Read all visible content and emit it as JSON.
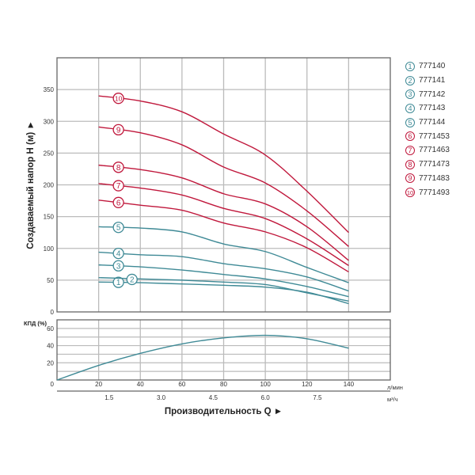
{
  "chart_data": [
    {
      "type": "line",
      "ylabel": "Создаваемый напор H (м) ►",
      "xlim": [
        0,
        160
      ],
      "ylim": [
        0,
        400
      ],
      "yticks": [
        0,
        50,
        100,
        150,
        200,
        250,
        300,
        350
      ],
      "xgrid": [
        20,
        40,
        60,
        80,
        100,
        120,
        140
      ],
      "grid": true,
      "legend_placement": "right",
      "x": [
        20,
        40,
        60,
        80,
        100,
        120,
        140
      ],
      "series": [
        {
          "name": "777140",
          "label": "1",
          "color": "#3f8a96",
          "values": [
            47,
            46,
            44,
            42,
            39,
            31,
            13
          ]
        },
        {
          "name": "777141",
          "label": "2",
          "color": "#3f8a96",
          "values": [
            54,
            52,
            50,
            47,
            43,
            30,
            17
          ]
        },
        {
          "name": "777142",
          "label": "3",
          "color": "#3f8a96",
          "values": [
            74,
            71,
            66,
            59,
            52,
            40,
            24
          ]
        },
        {
          "name": "777143",
          "label": "4",
          "color": "#3f8a96",
          "values": [
            94,
            90,
            87,
            76,
            68,
            55,
            33
          ]
        },
        {
          "name": "777144",
          "label": "5",
          "color": "#3f8a96",
          "values": [
            134,
            132,
            126,
            107,
            95,
            70,
            46
          ]
        },
        {
          "name": "7771453",
          "label": "6",
          "color": "#c0183c",
          "values": [
            176,
            168,
            160,
            140,
            126,
            101,
            63
          ]
        },
        {
          "name": "7771463",
          "label": "7",
          "color": "#c0183c",
          "values": [
            202,
            195,
            184,
            163,
            147,
            115,
            73
          ]
        },
        {
          "name": "7771473",
          "label": "8",
          "color": "#c0183c",
          "values": [
            231,
            224,
            211,
            186,
            170,
            134,
            81
          ]
        },
        {
          "name": "7771483",
          "label": "9",
          "color": "#c0183c",
          "values": [
            291,
            282,
            263,
            228,
            203,
            159,
            103
          ]
        },
        {
          "name": "7771493",
          "label": "10",
          "color": "#c0183c",
          "values": [
            340,
            332,
            315,
            280,
            247,
            190,
            125
          ]
        }
      ]
    },
    {
      "type": "line",
      "ylabel": "КПД (%)",
      "xlabel": "Производительность Q ►",
      "xlim": [
        0,
        160
      ],
      "ylim": [
        0,
        70
      ],
      "yticks": [
        0,
        20,
        40,
        60
      ],
      "xticks": [
        20,
        40,
        60,
        80,
        100,
        120,
        140
      ],
      "x_unit": "л/мин",
      "x2ticks": [
        "1.5",
        "3.0",
        "4.5",
        "6.0",
        "7.5"
      ],
      "x2tick_values_lpm": [
        25,
        50,
        75,
        100,
        125
      ],
      "x2_unit": "м³/ч",
      "grid": true,
      "color": "#3f8a96",
      "x": [
        0,
        20,
        40,
        60,
        80,
        100,
        120,
        140
      ],
      "values": [
        0,
        17,
        31,
        42,
        49,
        52,
        48,
        37
      ]
    }
  ]
}
